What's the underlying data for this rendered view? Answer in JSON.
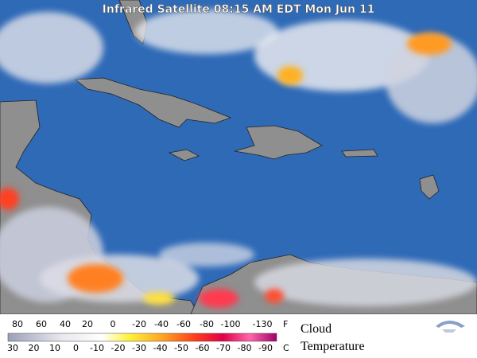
{
  "header": {
    "title": "Infrared Satellite 08:15 AM EDT Mon Jun 11"
  },
  "legend": {
    "fahrenheit": [
      80,
      60,
      40,
      20,
      0,
      -20,
      -40,
      -60,
      -80,
      -100,
      -130
    ],
    "fahrenheit_unit": "F",
    "celsius": [
      30,
      20,
      10,
      0,
      -10,
      -20,
      -30,
      -40,
      -50,
      -60,
      -70,
      -80,
      -90
    ],
    "celsius_unit": "C",
    "caption": [
      "Cloud",
      "Temperature"
    ]
  }
}
